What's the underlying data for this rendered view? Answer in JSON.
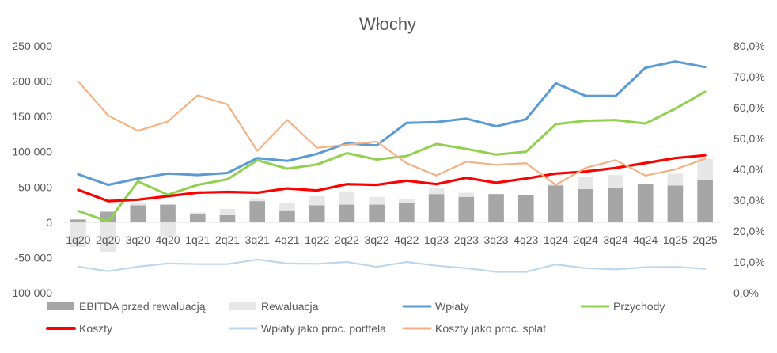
{
  "chart_data": {
    "type": "bar",
    "title": "Włochy",
    "categories": [
      "1q20",
      "2q20",
      "3q20",
      "4q20",
      "1q21",
      "2q21",
      "3q21",
      "4q21",
      "1q22",
      "2q22",
      "3q22",
      "4q22",
      "1q23",
      "2q23",
      "3q23",
      "4q23",
      "1q24",
      "2q24",
      "3q24",
      "4q24",
      "1q25",
      "2q25"
    ],
    "y_left": {
      "min": -100000,
      "max": 250000,
      "ticks": [
        -100000,
        -50000,
        0,
        50000,
        100000,
        150000,
        200000,
        250000
      ],
      "tick_labels": [
        "-100 000",
        "-50 000",
        "0",
        "50 000",
        "100 000",
        "150 000",
        "200 000",
        "250 000"
      ]
    },
    "y_right": {
      "min": 0,
      "max": 0.8,
      "ticks": [
        0,
        0.1,
        0.2,
        0.3,
        0.4,
        0.5,
        0.6,
        0.7,
        0.8
      ],
      "tick_labels": [
        "0,0%",
        "10,0%",
        "20,0%",
        "30,0%",
        "40,0%",
        "50,0%",
        "60,0%",
        "70,0%",
        "80,0%"
      ]
    },
    "grid": false,
    "legend_position": "bottom",
    "series": [
      {
        "name": "EBITDA przed rewaluacją",
        "kind": "bar",
        "axis": "left",
        "color": "#a6a6a6",
        "values": [
          4000,
          15000,
          24000,
          25000,
          12000,
          10000,
          30000,
          17000,
          24000,
          25000,
          25000,
          27000,
          40000,
          36000,
          40000,
          38000,
          52000,
          47000,
          49000,
          54000,
          52000,
          60000
        ]
      },
      {
        "name": "Rewaluacja",
        "kind": "bar",
        "axis": "left",
        "color": "#e7e7e7",
        "values": [
          -35000,
          -42000,
          3000,
          -20000,
          2000,
          9000,
          4000,
          11000,
          13000,
          19000,
          11000,
          6000,
          8000,
          6000,
          0,
          1000,
          3000,
          18000,
          18000,
          0,
          17000,
          30000
        ]
      },
      {
        "name": "Wpłaty",
        "kind": "line",
        "axis": "left",
        "color": "#5b9bd5",
        "values": [
          68000,
          53000,
          62000,
          69000,
          67000,
          70000,
          91000,
          87000,
          97000,
          112000,
          109000,
          141000,
          142000,
          147000,
          136000,
          146000,
          197000,
          179000,
          179000,
          219000,
          228000,
          220000
        ]
      },
      {
        "name": "Przychody",
        "kind": "line",
        "axis": "left",
        "color": "#92d050",
        "values": [
          16000,
          1000,
          58000,
          39000,
          53000,
          61000,
          88000,
          76000,
          82000,
          98000,
          89000,
          94000,
          111000,
          104000,
          96000,
          100000,
          139000,
          144000,
          145000,
          140000,
          161000,
          185000
        ]
      },
      {
        "name": "Koszty",
        "kind": "line",
        "axis": "left",
        "color": "#ff0000",
        "values": [
          46000,
          30000,
          32000,
          37000,
          42000,
          43000,
          42000,
          48000,
          45000,
          54000,
          53000,
          59000,
          54000,
          63000,
          56000,
          62000,
          69000,
          72000,
          77000,
          84000,
          91000,
          95000
        ]
      },
      {
        "name": "Wpłaty jako proc. portfela",
        "kind": "line",
        "axis": "right",
        "color": "#bdd7ee",
        "values": [
          0.085,
          0.07,
          0.085,
          0.095,
          0.093,
          0.093,
          0.108,
          0.095,
          0.094,
          0.1,
          0.084,
          0.1,
          0.088,
          0.08,
          0.068,
          0.068,
          0.092,
          0.08,
          0.076,
          0.083,
          0.084,
          0.078
        ]
      },
      {
        "name": "Koszty jako proc. spłat",
        "kind": "line",
        "axis": "right",
        "color": "#f4b183",
        "values": [
          0.685,
          0.575,
          0.525,
          0.555,
          0.64,
          0.61,
          0.46,
          0.56,
          0.47,
          0.48,
          0.49,
          0.42,
          0.38,
          0.425,
          0.415,
          0.42,
          0.35,
          0.405,
          0.43,
          0.38,
          0.4,
          0.435
        ]
      }
    ],
    "legend": [
      {
        "label": "EBITDA przed rewaluacją",
        "swatch": "box",
        "color": "#a6a6a6"
      },
      {
        "label": "Rewaluacja",
        "swatch": "box",
        "color": "#e7e7e7"
      },
      {
        "label": "Wpłaty",
        "swatch": "line",
        "color": "#5b9bd5"
      },
      {
        "label": "Przychody",
        "swatch": "line",
        "color": "#92d050"
      },
      {
        "label": "Koszty",
        "swatch": "line",
        "color": "#ff0000"
      },
      {
        "label": "Wpłaty jako proc. portfela",
        "swatch": "line",
        "color": "#bdd7ee"
      },
      {
        "label": "Koszty jako proc. spłat",
        "swatch": "line",
        "color": "#f4b183"
      }
    ]
  }
}
